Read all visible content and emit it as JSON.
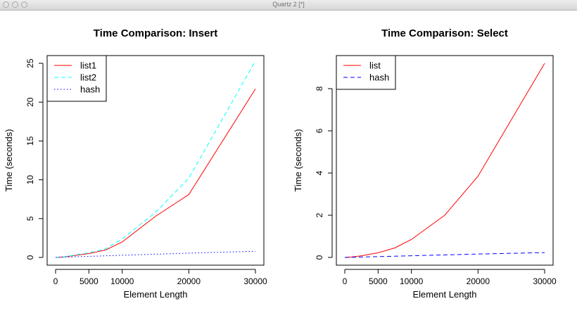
{
  "window": {
    "title": "Quartz 2 [*]"
  },
  "chart_data": [
    {
      "type": "line",
      "title": "Time Comparison: Insert",
      "xlabel": "Element Length",
      "ylabel": "Time (seconds)",
      "xlim": [
        0,
        30000
      ],
      "ylim": [
        0,
        25
      ],
      "xticks": [
        0,
        5000,
        10000,
        20000,
        30000
      ],
      "yticks": [
        0,
        5,
        10,
        15,
        20,
        25
      ],
      "grid": false,
      "legend": "top-left",
      "series": [
        {
          "name": "list1",
          "color": "#ff0000",
          "dash": "solid",
          "x": [
            0,
            1000,
            2500,
            5000,
            7500,
            10000,
            15000,
            20000,
            30000
          ],
          "y": [
            0,
            0.05,
            0.2,
            0.5,
            0.95,
            2.0,
            5.3,
            8.1,
            21.7
          ]
        },
        {
          "name": "list2",
          "color": "#00ffff",
          "dash": "dashed",
          "x": [
            0,
            1000,
            2500,
            5000,
            7500,
            10000,
            15000,
            20000,
            30000
          ],
          "y": [
            0,
            0.06,
            0.25,
            0.6,
            1.1,
            2.4,
            5.8,
            10.2,
            25.3
          ]
        },
        {
          "name": "hash",
          "color": "#0000ff",
          "dash": "dotted",
          "x": [
            0,
            1000,
            2500,
            5000,
            7500,
            10000,
            15000,
            20000,
            30000
          ],
          "y": [
            0,
            0.03,
            0.07,
            0.14,
            0.21,
            0.28,
            0.42,
            0.55,
            0.8
          ]
        }
      ]
    },
    {
      "type": "line",
      "title": "Time Comparison: Select",
      "xlabel": "Element Length",
      "ylabel": "Time (seconds)",
      "xlim": [
        0,
        30000
      ],
      "ylim": [
        0,
        9.2
      ],
      "xticks": [
        0,
        5000,
        10000,
        20000,
        30000
      ],
      "yticks": [
        0,
        2,
        4,
        6,
        8
      ],
      "grid": false,
      "legend": "top-left",
      "series": [
        {
          "name": "list",
          "color": "#ff0000",
          "dash": "solid",
          "x": [
            0,
            1000,
            2500,
            5000,
            7500,
            10000,
            15000,
            20000,
            30000
          ],
          "y": [
            0,
            0.02,
            0.08,
            0.22,
            0.45,
            0.85,
            2.0,
            3.85,
            9.2
          ]
        },
        {
          "name": "hash",
          "color": "#0000ff",
          "dash": "dashed",
          "x": [
            0,
            1000,
            2500,
            5000,
            7500,
            10000,
            15000,
            20000,
            30000
          ],
          "y": [
            0,
            0.01,
            0.02,
            0.04,
            0.06,
            0.08,
            0.12,
            0.16,
            0.23
          ]
        }
      ]
    }
  ]
}
